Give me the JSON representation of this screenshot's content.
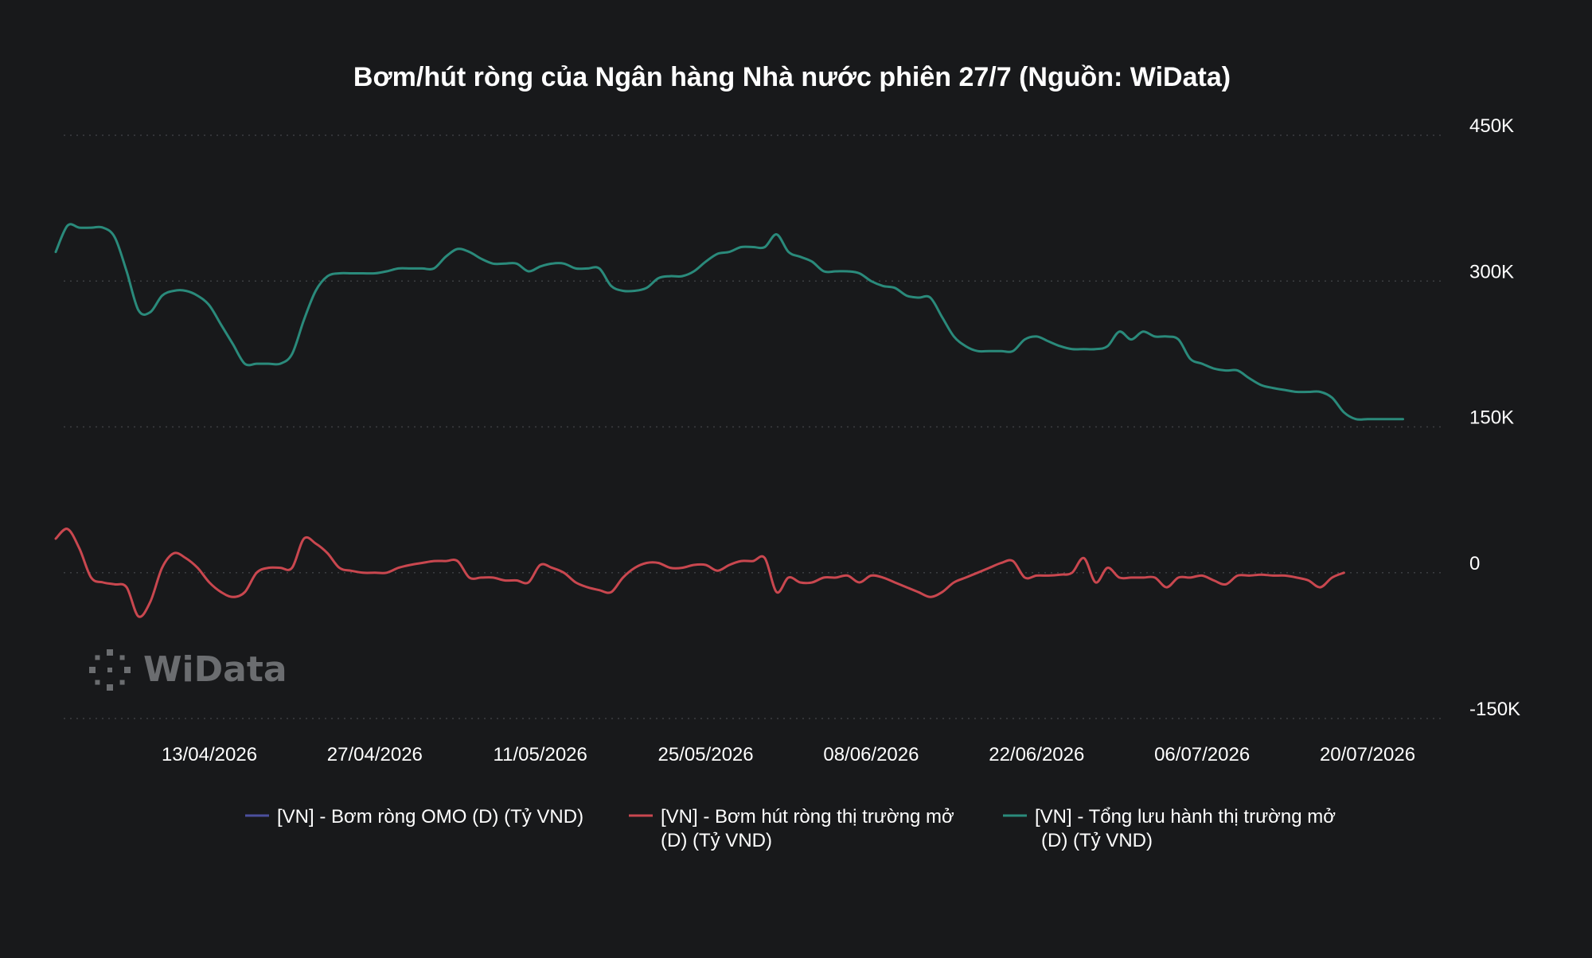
{
  "colors": {
    "background": "#18191b",
    "series_omo": "#4b4f9e",
    "series_net": "#c9474f",
    "series_total": "#2a8a7b"
  },
  "watermark": {
    "text": "WiData",
    "icon": "widata-dots-logo-icon"
  },
  "chart_data": {
    "type": "line",
    "title": "Bơm/hút ròng của Ngân hàng Nhà nước phiên 27/7 (Nguồn: WiData)",
    "xlabel": "",
    "ylabel": "",
    "x_start": "2026-03-31",
    "ylim": [
      -150000,
      450000
    ],
    "yticks": [
      -150000,
      0,
      150000,
      300000,
      450000
    ],
    "ytick_labels": [
      "-150K",
      "0",
      "150K",
      "300K",
      "450K"
    ],
    "xticks": [
      "2026-04-13",
      "2026-04-27",
      "2026-05-11",
      "2026-05-25",
      "2026-06-08",
      "2026-06-22",
      "2026-07-06",
      "2026-07-20"
    ],
    "xtick_labels": [
      "13/04/2026",
      "27/04/2026",
      "11/05/2026",
      "25/05/2026",
      "08/06/2026",
      "22/06/2026",
      "06/07/2026",
      "20/07/2026"
    ],
    "grid": true,
    "legend_position": "bottom",
    "series": [
      {
        "name": "[VN] - Bơm ròng OMO (D) (Tỷ VND)",
        "color": "#4b4f9e",
        "points": []
      },
      {
        "name": "[VN] - Bơm hút ròng thị trường mở (D) (Tỷ VND)",
        "color": "#c9474f",
        "points": [
          [
            "2026-03-31",
            35000
          ],
          [
            "2026-04-01",
            45000
          ],
          [
            "2026-04-02",
            25000
          ],
          [
            "2026-04-03",
            -5000
          ],
          [
            "2026-04-04",
            -10000
          ],
          [
            "2026-04-05",
            -12000
          ],
          [
            "2026-04-06",
            -15000
          ],
          [
            "2026-04-07",
            -45000
          ],
          [
            "2026-04-08",
            -30000
          ],
          [
            "2026-04-09",
            5000
          ],
          [
            "2026-04-10",
            20000
          ],
          [
            "2026-04-11",
            15000
          ],
          [
            "2026-04-12",
            5000
          ],
          [
            "2026-04-13",
            -10000
          ],
          [
            "2026-04-14",
            -20000
          ],
          [
            "2026-04-15",
            -25000
          ],
          [
            "2026-04-16",
            -20000
          ],
          [
            "2026-04-17",
            0
          ],
          [
            "2026-04-18",
            5000
          ],
          [
            "2026-04-19",
            5000
          ],
          [
            "2026-04-20",
            5000
          ],
          [
            "2026-04-21",
            35000
          ],
          [
            "2026-04-22",
            30000
          ],
          [
            "2026-04-23",
            20000
          ],
          [
            "2026-04-24",
            5000
          ],
          [
            "2026-04-25",
            2000
          ],
          [
            "2026-04-26",
            0
          ],
          [
            "2026-04-27",
            0
          ],
          [
            "2026-04-28",
            0
          ],
          [
            "2026-04-29",
            5000
          ],
          [
            "2026-04-30",
            8000
          ],
          [
            "2026-05-01",
            10000
          ],
          [
            "2026-05-02",
            12000
          ],
          [
            "2026-05-03",
            12000
          ],
          [
            "2026-05-04",
            12000
          ],
          [
            "2026-05-05",
            -5000
          ],
          [
            "2026-05-06",
            -5000
          ],
          [
            "2026-05-07",
            -5000
          ],
          [
            "2026-05-08",
            -8000
          ],
          [
            "2026-05-09",
            -8000
          ],
          [
            "2026-05-10",
            -10000
          ],
          [
            "2026-05-11",
            8000
          ],
          [
            "2026-05-12",
            5000
          ],
          [
            "2026-05-13",
            0
          ],
          [
            "2026-05-14",
            -10000
          ],
          [
            "2026-05-15",
            -15000
          ],
          [
            "2026-05-16",
            -18000
          ],
          [
            "2026-05-17",
            -20000
          ],
          [
            "2026-05-18",
            -5000
          ],
          [
            "2026-05-19",
            5000
          ],
          [
            "2026-05-20",
            10000
          ],
          [
            "2026-05-21",
            10000
          ],
          [
            "2026-05-22",
            5000
          ],
          [
            "2026-05-23",
            5000
          ],
          [
            "2026-05-24",
            8000
          ],
          [
            "2026-05-25",
            8000
          ],
          [
            "2026-05-26",
            2000
          ],
          [
            "2026-05-27",
            8000
          ],
          [
            "2026-05-28",
            12000
          ],
          [
            "2026-05-29",
            12000
          ],
          [
            "2026-05-30",
            15000
          ],
          [
            "2026-05-31",
            -20000
          ],
          [
            "2026-06-01",
            -5000
          ],
          [
            "2026-06-02",
            -10000
          ],
          [
            "2026-06-03",
            -10000
          ],
          [
            "2026-06-04",
            -5000
          ],
          [
            "2026-06-05",
            -5000
          ],
          [
            "2026-06-06",
            -3000
          ],
          [
            "2026-06-07",
            -10000
          ],
          [
            "2026-06-08",
            -3000
          ],
          [
            "2026-06-09",
            -5000
          ],
          [
            "2026-06-10",
            -10000
          ],
          [
            "2026-06-11",
            -15000
          ],
          [
            "2026-06-12",
            -20000
          ],
          [
            "2026-06-13",
            -25000
          ],
          [
            "2026-06-14",
            -20000
          ],
          [
            "2026-06-15",
            -10000
          ],
          [
            "2026-06-16",
            -5000
          ],
          [
            "2026-06-17",
            0
          ],
          [
            "2026-06-18",
            5000
          ],
          [
            "2026-06-19",
            10000
          ],
          [
            "2026-06-20",
            12000
          ],
          [
            "2026-06-21",
            -5000
          ],
          [
            "2026-06-22",
            -3000
          ],
          [
            "2026-06-23",
            -3000
          ],
          [
            "2026-06-24",
            -2000
          ],
          [
            "2026-06-25",
            0
          ],
          [
            "2026-06-26",
            15000
          ],
          [
            "2026-06-27",
            -10000
          ],
          [
            "2026-06-28",
            5000
          ],
          [
            "2026-06-29",
            -5000
          ],
          [
            "2026-06-30",
            -5000
          ],
          [
            "2026-07-01",
            -5000
          ],
          [
            "2026-07-02",
            -5000
          ],
          [
            "2026-07-03",
            -15000
          ],
          [
            "2026-07-04",
            -5000
          ],
          [
            "2026-07-05",
            -5000
          ],
          [
            "2026-07-06",
            -3000
          ],
          [
            "2026-07-07",
            -8000
          ],
          [
            "2026-07-08",
            -12000
          ],
          [
            "2026-07-09",
            -3000
          ],
          [
            "2026-07-10",
            -3000
          ],
          [
            "2026-07-11",
            -2000
          ],
          [
            "2026-07-12",
            -3000
          ],
          [
            "2026-07-13",
            -3000
          ],
          [
            "2026-07-14",
            -5000
          ],
          [
            "2026-07-15",
            -8000
          ],
          [
            "2026-07-16",
            -15000
          ],
          [
            "2026-07-17",
            -5000
          ],
          [
            "2026-07-18",
            0
          ]
        ]
      },
      {
        "name": "[VN] - Tổng lưu hành thị trường mở (D) (Tỷ VND)",
        "color": "#2a8a7b",
        "points": [
          [
            "2026-03-31",
            330000
          ],
          [
            "2026-04-01",
            357000
          ],
          [
            "2026-04-02",
            355000
          ],
          [
            "2026-04-03",
            355000
          ],
          [
            "2026-04-04",
            355000
          ],
          [
            "2026-04-05",
            345000
          ],
          [
            "2026-04-06",
            310000
          ],
          [
            "2026-04-07",
            270000
          ],
          [
            "2026-04-08",
            268000
          ],
          [
            "2026-04-09",
            285000
          ],
          [
            "2026-04-10",
            290000
          ],
          [
            "2026-04-11",
            290000
          ],
          [
            "2026-04-12",
            285000
          ],
          [
            "2026-04-13",
            275000
          ],
          [
            "2026-04-14",
            255000
          ],
          [
            "2026-04-15",
            235000
          ],
          [
            "2026-04-16",
            215000
          ],
          [
            "2026-04-17",
            215000
          ],
          [
            "2026-04-18",
            215000
          ],
          [
            "2026-04-19",
            215000
          ],
          [
            "2026-04-20",
            225000
          ],
          [
            "2026-04-21",
            260000
          ],
          [
            "2026-04-22",
            290000
          ],
          [
            "2026-04-23",
            305000
          ],
          [
            "2026-04-24",
            308000
          ],
          [
            "2026-04-25",
            308000
          ],
          [
            "2026-04-26",
            308000
          ],
          [
            "2026-04-27",
            308000
          ],
          [
            "2026-04-28",
            310000
          ],
          [
            "2026-04-29",
            313000
          ],
          [
            "2026-04-30",
            313000
          ],
          [
            "2026-05-01",
            313000
          ],
          [
            "2026-05-02",
            313000
          ],
          [
            "2026-05-03",
            325000
          ],
          [
            "2026-05-04",
            333000
          ],
          [
            "2026-05-05",
            330000
          ],
          [
            "2026-05-06",
            323000
          ],
          [
            "2026-05-07",
            318000
          ],
          [
            "2026-05-08",
            318000
          ],
          [
            "2026-05-09",
            318000
          ],
          [
            "2026-05-10",
            310000
          ],
          [
            "2026-05-11",
            315000
          ],
          [
            "2026-05-12",
            318000
          ],
          [
            "2026-05-13",
            318000
          ],
          [
            "2026-05-14",
            313000
          ],
          [
            "2026-05-15",
            313000
          ],
          [
            "2026-05-16",
            313000
          ],
          [
            "2026-05-17",
            295000
          ],
          [
            "2026-05-18",
            290000
          ],
          [
            "2026-05-19",
            290000
          ],
          [
            "2026-05-20",
            293000
          ],
          [
            "2026-05-21",
            303000
          ],
          [
            "2026-05-22",
            305000
          ],
          [
            "2026-05-23",
            305000
          ],
          [
            "2026-05-24",
            310000
          ],
          [
            "2026-05-25",
            320000
          ],
          [
            "2026-05-26",
            328000
          ],
          [
            "2026-05-27",
            330000
          ],
          [
            "2026-05-28",
            335000
          ],
          [
            "2026-05-29",
            335000
          ],
          [
            "2026-05-30",
            335000
          ],
          [
            "2026-05-31",
            348000
          ],
          [
            "2026-06-01",
            330000
          ],
          [
            "2026-06-02",
            325000
          ],
          [
            "2026-06-03",
            320000
          ],
          [
            "2026-06-04",
            310000
          ],
          [
            "2026-06-05",
            310000
          ],
          [
            "2026-06-06",
            310000
          ],
          [
            "2026-06-07",
            308000
          ],
          [
            "2026-06-08",
            300000
          ],
          [
            "2026-06-09",
            295000
          ],
          [
            "2026-06-10",
            293000
          ],
          [
            "2026-06-11",
            285000
          ],
          [
            "2026-06-12",
            283000
          ],
          [
            "2026-06-13",
            283000
          ],
          [
            "2026-06-14",
            263000
          ],
          [
            "2026-06-15",
            243000
          ],
          [
            "2026-06-16",
            233000
          ],
          [
            "2026-06-17",
            228000
          ],
          [
            "2026-06-18",
            228000
          ],
          [
            "2026-06-19",
            228000
          ],
          [
            "2026-06-20",
            228000
          ],
          [
            "2026-06-21",
            240000
          ],
          [
            "2026-06-22",
            243000
          ],
          [
            "2026-06-23",
            238000
          ],
          [
            "2026-06-24",
            233000
          ],
          [
            "2026-06-25",
            230000
          ],
          [
            "2026-06-26",
            230000
          ],
          [
            "2026-06-27",
            230000
          ],
          [
            "2026-06-28",
            233000
          ],
          [
            "2026-06-29",
            248000
          ],
          [
            "2026-06-30",
            240000
          ],
          [
            "2026-07-01",
            248000
          ],
          [
            "2026-07-02",
            243000
          ],
          [
            "2026-07-03",
            243000
          ],
          [
            "2026-07-04",
            240000
          ],
          [
            "2026-07-05",
            220000
          ],
          [
            "2026-07-06",
            215000
          ],
          [
            "2026-07-07",
            210000
          ],
          [
            "2026-07-08",
            208000
          ],
          [
            "2026-07-09",
            208000
          ],
          [
            "2026-07-10",
            200000
          ],
          [
            "2026-07-11",
            193000
          ],
          [
            "2026-07-12",
            190000
          ],
          [
            "2026-07-13",
            188000
          ],
          [
            "2026-07-14",
            186000
          ],
          [
            "2026-07-15",
            186000
          ],
          [
            "2026-07-16",
            186000
          ],
          [
            "2026-07-17",
            180000
          ],
          [
            "2026-07-18",
            165000
          ],
          [
            "2026-07-19",
            158000
          ],
          [
            "2026-07-20",
            158000
          ],
          [
            "2026-07-21",
            158000
          ],
          [
            "2026-07-22",
            158000
          ],
          [
            "2026-07-23",
            158000
          ]
        ]
      }
    ]
  }
}
